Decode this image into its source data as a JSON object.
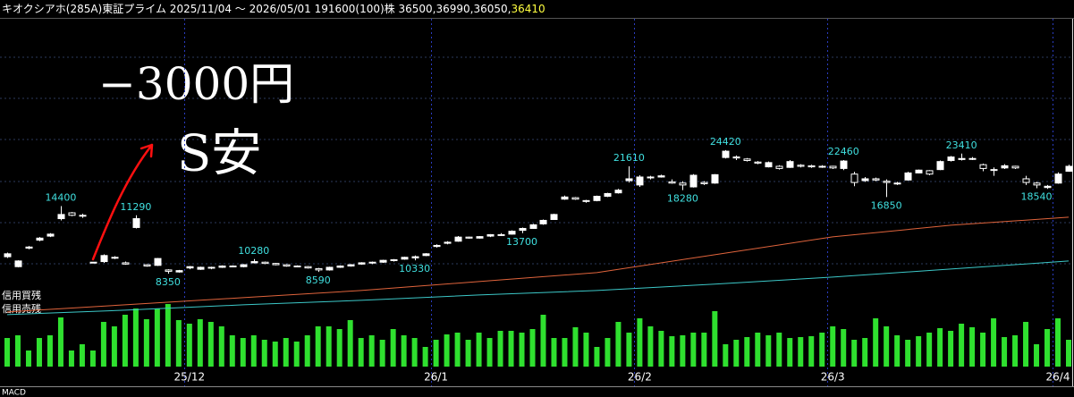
{
  "chart_data": {
    "type": "candlestick",
    "title": "キオクシアホ(285A)東証プライム 2025/11/04 ～ 2026/05/01 191600(100)株 36500,36990,36050,",
    "title_last": "36410",
    "title_last_color": "#ffff40",
    "handwritten": [
      "−3000円",
      "S安"
    ],
    "handwritten_color": "#ff1010",
    "log_scale": true,
    "ylim": [
      6100,
      76600
    ],
    "up_color": "#ffffff",
    "down_color": "#000000",
    "label_color": "#40e0e0",
    "legend_items": [
      {
        "name": "信用買残",
        "color": "#ffffff"
      },
      {
        "name": "信用売残",
        "color": "#ff50ff"
      }
    ],
    "bottom_label": "MACD",
    "categories": [
      null,
      null,
      null,
      null,
      null,
      null,
      null,
      null,
      null,
      null,
      null,
      null,
      null,
      null,
      null,
      null,
      null,
      "25/12",
      null,
      null,
      null,
      null,
      null,
      null,
      null,
      null,
      null,
      null,
      null,
      null,
      null,
      null,
      null,
      null,
      null,
      null,
      null,
      null,
      null,
      null,
      "26/1",
      null,
      null,
      null,
      null,
      null,
      null,
      null,
      null,
      null,
      null,
      null,
      null,
      null,
      null,
      null,
      null,
      null,
      null,
      "26/2",
      null,
      null,
      null,
      null,
      null,
      null,
      null,
      null,
      null,
      null,
      null,
      null,
      null,
      null,
      null,
      null,
      null,
      "26/3",
      null,
      null,
      null,
      null,
      null,
      null,
      null,
      null,
      null,
      null,
      null,
      null,
      null,
      null,
      null,
      null,
      null,
      null,
      null,
      null,
      "26/4",
      null
    ],
    "ohlc": [
      [
        9600,
        9950,
        9500,
        9850
      ],
      [
        8800,
        9300,
        8750,
        9250
      ],
      [
        10350,
        10550,
        10250,
        10450
      ],
      [
        11100,
        11400,
        11000,
        11300
      ],
      [
        11500,
        11800,
        11400,
        11700
      ],
      [
        13400,
        14960,
        13200,
        13900
      ],
      [
        14100,
        14200,
        13700,
        13800
      ],
      [
        13800,
        14000,
        13500,
        13700
      ],
      [
        9150,
        9150,
        9150,
        9150
      ],
      [
        9200,
        9800,
        9100,
        9700
      ],
      [
        9550,
        9650,
        9400,
        9500
      ],
      [
        9100,
        9200,
        8950,
        9000
      ],
      [
        12400,
        13800,
        12300,
        13400
      ],
      [
        8950,
        9000,
        8800,
        8850
      ],
      [
        8900,
        9500,
        8850,
        9450
      ],
      [
        8550,
        8600,
        8270,
        8450
      ],
      [
        8400,
        8550,
        8350,
        8500
      ],
      [
        8700,
        8850,
        8600,
        8800
      ],
      [
        8600,
        8800,
        8550,
        8750
      ],
      [
        8750,
        8800,
        8600,
        8700
      ],
      [
        8750,
        8900,
        8700,
        8850
      ],
      [
        8850,
        8900,
        8750,
        8800
      ],
      [
        8800,
        9000,
        8750,
        8950
      ],
      [
        9100,
        9400,
        9050,
        9200
      ],
      [
        9150,
        9200,
        9000,
        9050
      ],
      [
        9050,
        9100,
        8900,
        8950
      ],
      [
        8950,
        9000,
        8800,
        8850
      ],
      [
        8850,
        8900,
        8750,
        8800
      ],
      [
        8800,
        8850,
        8650,
        8700
      ],
      [
        8650,
        8700,
        8400,
        8550
      ],
      [
        8550,
        8800,
        8500,
        8750
      ],
      [
        8750,
        8900,
        8700,
        8850
      ],
      [
        8850,
        9000,
        8800,
        8950
      ],
      [
        9000,
        9150,
        8950,
        9100
      ],
      [
        9100,
        9200,
        9000,
        9150
      ],
      [
        9150,
        9350,
        9100,
        9300
      ],
      [
        9300,
        9400,
        9200,
        9350
      ],
      [
        9400,
        9600,
        9350,
        9550
      ],
      [
        9500,
        9700,
        9300,
        9600
      ],
      [
        9700,
        9900,
        9650,
        9850
      ],
      [
        10500,
        10700,
        10400,
        10600
      ],
      [
        10800,
        11000,
        10700,
        10900
      ],
      [
        11000,
        11500,
        10950,
        11400
      ],
      [
        11400,
        11450,
        11250,
        11300
      ],
      [
        11300,
        11500,
        11250,
        11450
      ],
      [
        11500,
        11700,
        11400,
        11650
      ],
      [
        11650,
        11800,
        11500,
        11600
      ],
      [
        11700,
        12100,
        11650,
        12000
      ],
      [
        12100,
        12400,
        11800,
        12300
      ],
      [
        12300,
        12800,
        12250,
        12700
      ],
      [
        12800,
        13300,
        12700,
        13200
      ],
      [
        13300,
        14000,
        13250,
        13900
      ],
      [
        15900,
        16400,
        15800,
        16200
      ],
      [
        16100,
        16200,
        15800,
        15900
      ],
      [
        15700,
        15800,
        15400,
        15600
      ],
      [
        15700,
        16400,
        15600,
        16300
      ],
      [
        16300,
        16800,
        16200,
        16700
      ],
      [
        16800,
        17400,
        16700,
        17200
      ],
      [
        18700,
        21200,
        18400,
        19000
      ],
      [
        18000,
        19600,
        17700,
        19300
      ],
      [
        19200,
        19500,
        18900,
        19300
      ],
      [
        19300,
        19700,
        19200,
        19500
      ],
      [
        18500,
        18900,
        18200,
        18300
      ],
      [
        18300,
        18600,
        17200,
        18000
      ],
      [
        17700,
        19800,
        17600,
        19600
      ],
      [
        18400,
        18600,
        18000,
        18200
      ],
      [
        18300,
        19800,
        18200,
        19700
      ],
      [
        22900,
        24420,
        22700,
        24200
      ],
      [
        23000,
        23300,
        22400,
        22800
      ],
      [
        22600,
        22800,
        22100,
        22300
      ],
      [
        22000,
        22200,
        21600,
        21800
      ],
      [
        21100,
        22100,
        21000,
        21900
      ],
      [
        21200,
        21400,
        20600,
        20800
      ],
      [
        21000,
        22400,
        20900,
        22100
      ],
      [
        21400,
        21600,
        21000,
        21200
      ],
      [
        21300,
        21500,
        20900,
        21100
      ],
      [
        21100,
        21400,
        20900,
        21200
      ],
      [
        21200,
        21300,
        20700,
        20900
      ],
      [
        20800,
        22400,
        20500,
        22200
      ],
      [
        19800,
        20200,
        17800,
        18400
      ],
      [
        18700,
        19300,
        18500,
        19000
      ],
      [
        19000,
        19200,
        18600,
        18800
      ],
      [
        18600,
        18900,
        16200,
        18400
      ],
      [
        18300,
        18500,
        18000,
        18200
      ],
      [
        18800,
        20200,
        18700,
        20000
      ],
      [
        20000,
        20600,
        19900,
        20500
      ],
      [
        20400,
        20500,
        19600,
        19800
      ],
      [
        20600,
        22300,
        20500,
        22100
      ],
      [
        22300,
        23200,
        22100,
        23000
      ],
      [
        22500,
        23700,
        22300,
        22700
      ],
      [
        22700,
        23000,
        22400,
        22600
      ],
      [
        21500,
        21700,
        20300,
        20800
      ],
      [
        20600,
        21000,
        19500,
        20500
      ],
      [
        20900,
        21600,
        20700,
        21300
      ],
      [
        21200,
        21300,
        20700,
        20900
      ],
      [
        19000,
        19500,
        18000,
        18400
      ],
      [
        18300,
        18500,
        17500,
        18000
      ],
      [
        17600,
        18000,
        17400,
        17800
      ],
      [
        18300,
        20100,
        18200,
        19800
      ],
      [
        20300,
        21500,
        20200,
        21200
      ]
    ],
    "price_labels": [
      14400,
      11290,
      8350,
      10280,
      8590,
      10330,
      13700,
      21610,
      18280,
      24420,
      22460,
      16850,
      23410,
      18540
    ],
    "lines": [
      {
        "color": "#e0643c",
        "x": [
          0,
          11,
          22,
          33,
          44,
          55,
          66,
          77,
          88,
          99
        ],
        "values": [
          5917,
          6300,
          6708,
          7140,
          7722,
          8352,
          9768,
          11422,
          12650,
          13573
        ]
      },
      {
        "color": "#3cc8c8",
        "x": [
          0,
          11,
          22,
          33,
          44,
          55,
          66,
          77,
          88,
          99
        ],
        "values": [
          5780,
          6010,
          6300,
          6552,
          6867,
          7140,
          7546,
          8032,
          8615,
          9248
        ]
      }
    ],
    "volume": {
      "color": "#2fe02f",
      "ylim": [
        0,
        70
      ],
      "values": [
        32,
        35,
        18,
        32,
        35,
        55,
        18,
        25,
        18,
        50,
        45,
        58,
        65,
        53,
        65,
        70,
        52,
        48,
        53,
        50,
        45,
        35,
        32,
        35,
        30,
        28,
        32,
        28,
        35,
        45,
        45,
        42,
        52,
        32,
        35,
        30,
        42,
        35,
        32,
        22,
        30,
        36,
        38,
        30,
        38,
        32,
        40,
        40,
        38,
        42,
        58,
        32,
        32,
        44,
        38,
        22,
        32,
        50,
        38,
        54,
        45,
        40,
        34,
        35,
        38,
        38,
        62,
        25,
        30,
        33,
        38,
        35,
        38,
        32,
        33,
        34,
        38,
        45,
        42,
        30,
        32,
        54,
        45,
        35,
        30,
        34,
        38,
        43,
        40,
        48,
        44,
        38,
        54,
        33,
        35,
        50,
        25,
        42,
        54,
        30
      ]
    }
  }
}
